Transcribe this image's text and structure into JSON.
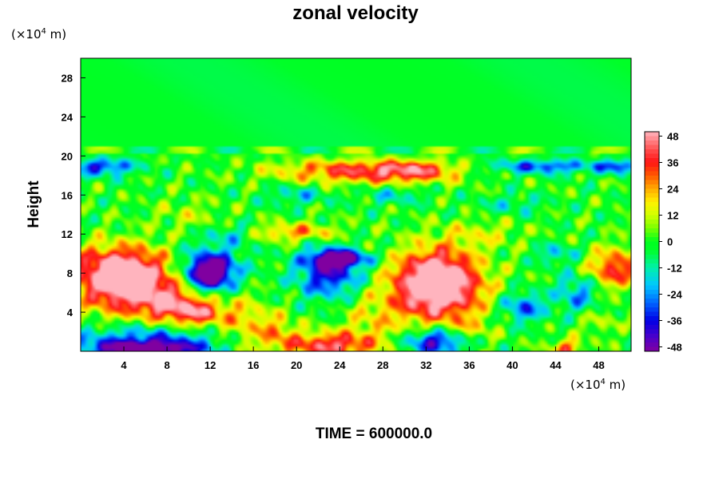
{
  "chart_data": {
    "type": "heatmap",
    "title": "zonal velocity",
    "ylabel": "Height",
    "y_unit": "(×10",
    "x_unit": "(×10",
    "unit_exponent": "4",
    "unit_suffix": " m)",
    "footer": "TIME = 600000.0",
    "xlim": [
      0,
      51
    ],
    "ylim": [
      0,
      30
    ],
    "x_ticks": [
      4,
      8,
      12,
      16,
      20,
      24,
      28,
      32,
      36,
      40,
      44,
      48
    ],
    "y_ticks": [
      4,
      8,
      12,
      16,
      20,
      24,
      28
    ],
    "colorbar": {
      "min": -50,
      "max": 50,
      "ticks": [
        48,
        36,
        24,
        12,
        0,
        -12,
        -24,
        -36,
        -48
      ]
    },
    "field_features": [
      {
        "x": 4,
        "y": 6.5,
        "value": 44,
        "rx": 4,
        "ry": 3
      },
      {
        "x": 3.5,
        "y": 8.5,
        "value": 38,
        "rx": 5,
        "ry": 2.5
      },
      {
        "x": 11,
        "y": 4,
        "value": 40,
        "rx": 2.5,
        "ry": 1.6
      },
      {
        "x": 8,
        "y": 5,
        "value": 34,
        "rx": 2.5,
        "ry": 2
      },
      {
        "x": 33,
        "y": 7.5,
        "value": 46,
        "rx": 3.5,
        "ry": 3
      },
      {
        "x": 33,
        "y": 6,
        "value": 36,
        "rx": 4.5,
        "ry": 3.5
      },
      {
        "x": 23,
        "y": 0.6,
        "value": 42,
        "rx": 4,
        "ry": 1.3
      },
      {
        "x": 49.5,
        "y": 8.5,
        "value": 38,
        "rx": 2.5,
        "ry": 2
      },
      {
        "x": 45,
        "y": 0.3,
        "value": 30,
        "rx": 1.5,
        "ry": 0.9
      },
      {
        "x": 25,
        "y": 18.5,
        "value": 34,
        "rx": 7,
        "ry": 1.3
      },
      {
        "x": 31,
        "y": 18.5,
        "value": 30,
        "rx": 4,
        "ry": 1.2
      },
      {
        "x": 20,
        "y": 12.2,
        "value": 26,
        "rx": 4,
        "ry": 0.9
      },
      {
        "x": 12,
        "y": 8,
        "value": -46,
        "rx": 1.8,
        "ry": 1.5
      },
      {
        "x": 12,
        "y": 8.5,
        "value": -32,
        "rx": 3,
        "ry": 2.5
      },
      {
        "x": 23,
        "y": 8,
        "value": -40,
        "rx": 3,
        "ry": 2.5
      },
      {
        "x": 24,
        "y": 9.5,
        "value": -48,
        "rx": 2.5,
        "ry": 0.8
      },
      {
        "x": 33,
        "y": 1,
        "value": -44,
        "rx": 3,
        "ry": 1.3
      },
      {
        "x": 6,
        "y": 0.2,
        "value": -50,
        "rx": 5,
        "ry": 0.8
      },
      {
        "x": 6,
        "y": 1.2,
        "value": -30,
        "rx": 7,
        "ry": 1.6
      },
      {
        "x": 2,
        "y": 19,
        "value": -36,
        "rx": 3,
        "ry": 1
      },
      {
        "x": 43,
        "y": 19,
        "value": -32,
        "rx": 5,
        "ry": 0.8
      },
      {
        "x": 50,
        "y": 19,
        "value": -30,
        "rx": 2,
        "ry": 0.8
      },
      {
        "x": 41,
        "y": 4.5,
        "value": -30,
        "rx": 2,
        "ry": 1.5
      },
      {
        "x": 46,
        "y": 6,
        "value": -24,
        "rx": 2,
        "ry": 2
      },
      {
        "x": 18,
        "y": 2,
        "value": 22,
        "rx": 2,
        "ry": 2
      },
      {
        "x": 27,
        "y": 3,
        "value": 14,
        "rx": 3,
        "ry": 3
      },
      {
        "x": 15,
        "y": 3,
        "value": 18,
        "rx": 2,
        "ry": 3
      },
      {
        "x": 37,
        "y": 12,
        "value": 12,
        "rx": 4,
        "ry": 1.5
      },
      {
        "x": 10,
        "y": 14,
        "value": 10,
        "rx": 3,
        "ry": 1.5
      },
      {
        "x": 36,
        "y": 2,
        "value": 14,
        "rx": 2,
        "ry": 1.5
      },
      {
        "x": 48,
        "y": 3,
        "value": 10,
        "rx": 2,
        "ry": 1.5
      },
      {
        "x": 20,
        "y": 16,
        "value": -16,
        "rx": 3,
        "ry": 1
      },
      {
        "x": 29,
        "y": 16,
        "value": -14,
        "rx": 3,
        "ry": 1
      },
      {
        "x": 40,
        "y": 15,
        "value": -12,
        "rx": 3,
        "ry": 1
      },
      {
        "x": 14,
        "y": 12,
        "value": -14,
        "rx": 2,
        "ry": 1
      },
      {
        "x": 44,
        "y": 10,
        "value": -18,
        "rx": 2,
        "ry": 1
      }
    ]
  }
}
